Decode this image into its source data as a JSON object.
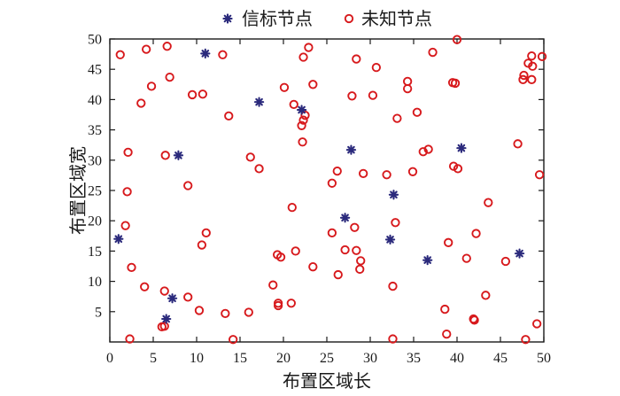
{
  "chart_data": {
    "type": "scatter",
    "xlabel": "布置区域长",
    "ylabel": "布置区域宽",
    "xlim": [
      0,
      50
    ],
    "ylim": [
      0,
      50
    ],
    "x_ticks": [
      0,
      5,
      10,
      15,
      20,
      25,
      30,
      35,
      40,
      45,
      50
    ],
    "y_ticks": [
      5,
      10,
      15,
      20,
      25,
      30,
      35,
      40,
      45,
      50
    ],
    "grid": false,
    "legend_position": "top",
    "colors": {
      "beacon": "#2b2a7c",
      "unknown": "#d7191c",
      "axis": "#1a1a1a"
    },
    "series": [
      {
        "name": "信标节点",
        "marker": "asterisk",
        "points": [
          [
            1.0,
            17.0
          ],
          [
            6.5,
            3.8
          ],
          [
            7.2,
            7.2
          ],
          [
            7.9,
            30.8
          ],
          [
            11.0,
            47.6
          ],
          [
            17.2,
            39.6
          ],
          [
            22.1,
            38.3
          ],
          [
            27.1,
            20.5
          ],
          [
            27.8,
            31.7
          ],
          [
            32.3,
            16.9
          ],
          [
            32.7,
            24.3
          ],
          [
            36.6,
            13.5
          ],
          [
            40.5,
            32.0
          ],
          [
            47.2,
            14.6
          ]
        ]
      },
      {
        "name": "未知节点",
        "marker": "circle",
        "points": [
          [
            1.2,
            47.4
          ],
          [
            1.8,
            19.2
          ],
          [
            2.0,
            24.8
          ],
          [
            2.1,
            31.3
          ],
          [
            2.3,
            0.5
          ],
          [
            2.5,
            12.3
          ],
          [
            3.6,
            39.4
          ],
          [
            4.0,
            9.1
          ],
          [
            4.2,
            48.3
          ],
          [
            4.8,
            42.2
          ],
          [
            6.0,
            2.5
          ],
          [
            6.3,
            2.6
          ],
          [
            6.3,
            8.4
          ],
          [
            6.4,
            30.8
          ],
          [
            6.6,
            48.8
          ],
          [
            6.9,
            43.7
          ],
          [
            9.0,
            7.4
          ],
          [
            9.0,
            25.8
          ],
          [
            9.5,
            40.8
          ],
          [
            10.3,
            5.2
          ],
          [
            10.6,
            16.0
          ],
          [
            10.7,
            40.9
          ],
          [
            11.1,
            18.0
          ],
          [
            13.0,
            47.4
          ],
          [
            13.3,
            4.7
          ],
          [
            13.7,
            37.3
          ],
          [
            14.2,
            0.4
          ],
          [
            16.0,
            4.9
          ],
          [
            16.2,
            30.5
          ],
          [
            17.2,
            28.6
          ],
          [
            18.8,
            9.4
          ],
          [
            19.3,
            14.4
          ],
          [
            19.4,
            6.0
          ],
          [
            19.4,
            6.4
          ],
          [
            19.7,
            14.0
          ],
          [
            20.1,
            42.0
          ],
          [
            20.9,
            6.4
          ],
          [
            21.0,
            22.2
          ],
          [
            21.2,
            39.2
          ],
          [
            21.4,
            15.0
          ],
          [
            22.1,
            35.7
          ],
          [
            22.2,
            33.0
          ],
          [
            22.3,
            47.0
          ],
          [
            22.3,
            36.6
          ],
          [
            22.5,
            37.4
          ],
          [
            22.9,
            48.6
          ],
          [
            23.4,
            12.4
          ],
          [
            23.4,
            42.5
          ],
          [
            25.6,
            26.2
          ],
          [
            25.6,
            18.0
          ],
          [
            26.2,
            28.2
          ],
          [
            26.3,
            11.1
          ],
          [
            27.1,
            15.2
          ],
          [
            27.9,
            40.6
          ],
          [
            28.2,
            18.9
          ],
          [
            28.4,
            15.1
          ],
          [
            28.4,
            46.7
          ],
          [
            28.8,
            12.0
          ],
          [
            28.9,
            13.4
          ],
          [
            29.2,
            27.8
          ],
          [
            30.3,
            40.7
          ],
          [
            30.7,
            45.3
          ],
          [
            31.9,
            27.6
          ],
          [
            32.6,
            0.5
          ],
          [
            32.6,
            9.2
          ],
          [
            32.9,
            19.7
          ],
          [
            33.1,
            36.9
          ],
          [
            34.3,
            43.0
          ],
          [
            34.3,
            41.8
          ],
          [
            34.9,
            28.1
          ],
          [
            35.4,
            37.9
          ],
          [
            36.1,
            31.4
          ],
          [
            36.7,
            31.8
          ],
          [
            37.2,
            47.8
          ],
          [
            38.6,
            5.4
          ],
          [
            38.8,
            1.3
          ],
          [
            39.0,
            16.4
          ],
          [
            39.5,
            42.8
          ],
          [
            39.6,
            29.0
          ],
          [
            39.8,
            42.7
          ],
          [
            40.0,
            49.9
          ],
          [
            40.1,
            28.6
          ],
          [
            41.1,
            13.8
          ],
          [
            41.9,
            3.8
          ],
          [
            42.0,
            3.6
          ],
          [
            42.2,
            17.9
          ],
          [
            43.3,
            7.7
          ],
          [
            43.6,
            23.0
          ],
          [
            45.6,
            13.3
          ],
          [
            47.0,
            32.7
          ],
          [
            47.6,
            43.3
          ],
          [
            47.7,
            44.0
          ],
          [
            47.9,
            0.4
          ],
          [
            48.2,
            46.0
          ],
          [
            48.6,
            47.2
          ],
          [
            48.6,
            43.3
          ],
          [
            48.7,
            45.5
          ],
          [
            49.2,
            3.0
          ],
          [
            49.5,
            27.6
          ],
          [
            49.8,
            47.1
          ]
        ]
      }
    ]
  }
}
